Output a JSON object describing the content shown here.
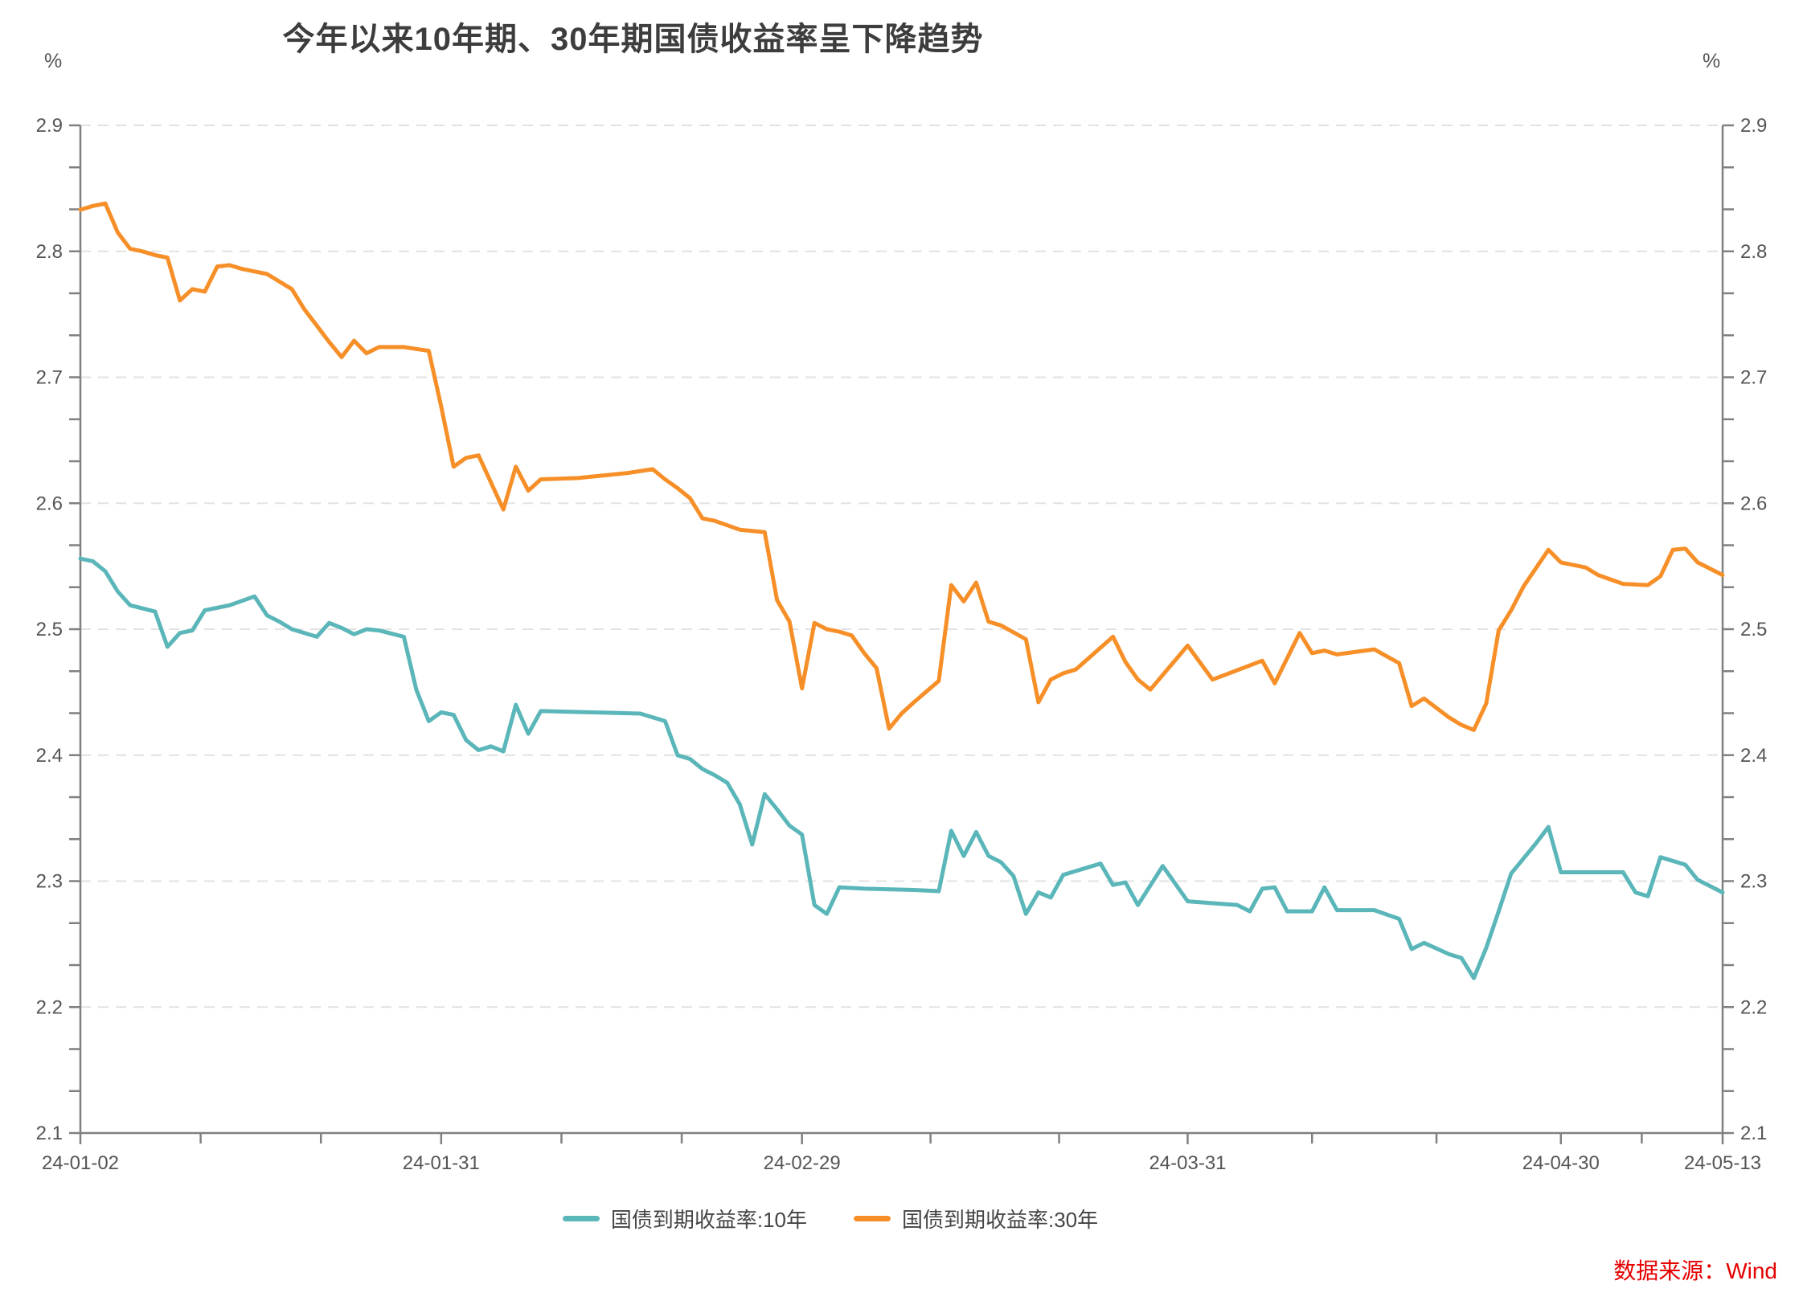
{
  "title": "今年以来10年期、30年期国债收益率呈下降趋势",
  "source_note": "数据来源：Wind",
  "colors": {
    "title_text": "#3d3d3d",
    "axis_line": "#808080",
    "tick_text": "#555555",
    "gridline": "#e2e2e2",
    "source_text": "#e60000",
    "series_10y": "#5ab6b9",
    "series_30y": "#f78f28"
  },
  "chart_data": {
    "type": "line",
    "title": "今年以来10年期、30年期国债收益率呈下降趋势",
    "unit_label": "%",
    "xlabel": "",
    "ylabel": "%",
    "ylim": [
      2.1,
      2.9
    ],
    "y_major_step": 0.1,
    "y_minors_per_major": 2,
    "grid": "horizontal dashed",
    "dual_y_axis": true,
    "legend_position": "bottom-center",
    "x_axis": {
      "range_days": [
        0,
        132
      ],
      "tick_labels": [
        "24-01-02",
        "24-01-31",
        "24-02-29",
        "24-03-31",
        "24-04-30",
        "24-05-13"
      ],
      "tick_days": [
        0,
        29,
        58,
        89,
        119,
        132
      ]
    },
    "series": [
      {
        "name": "国债到期收益率:10年",
        "color": "#5ab6b9",
        "points": [
          [
            0,
            2.556
          ],
          [
            1,
            2.554
          ],
          [
            2,
            2.546
          ],
          [
            3,
            2.53
          ],
          [
            4,
            2.519
          ],
          [
            6,
            2.514
          ],
          [
            7,
            2.486
          ],
          [
            8,
            2.497
          ],
          [
            9,
            2.499
          ],
          [
            10,
            2.515
          ],
          [
            12,
            2.519
          ],
          [
            14,
            2.526
          ],
          [
            15,
            2.511
          ],
          [
            16,
            2.506
          ],
          [
            17,
            2.5
          ],
          [
            19,
            2.494
          ],
          [
            20,
            2.505
          ],
          [
            21,
            2.501
          ],
          [
            22,
            2.496
          ],
          [
            23,
            2.5
          ],
          [
            24,
            2.499
          ],
          [
            26,
            2.494
          ],
          [
            27,
            2.452
          ],
          [
            28,
            2.427
          ],
          [
            29,
            2.434
          ],
          [
            30,
            2.432
          ],
          [
            31,
            2.412
          ],
          [
            32,
            2.404
          ],
          [
            33,
            2.407
          ],
          [
            34,
            2.403
          ],
          [
            35,
            2.44
          ],
          [
            36,
            2.417
          ],
          [
            37,
            2.435
          ],
          [
            45,
            2.433
          ],
          [
            47,
            2.427
          ],
          [
            48,
            2.4
          ],
          [
            49,
            2.397
          ],
          [
            50,
            2.389
          ],
          [
            51,
            2.384
          ],
          [
            52,
            2.378
          ],
          [
            53,
            2.361
          ],
          [
            54,
            2.329
          ],
          [
            55,
            2.369
          ],
          [
            56,
            2.357
          ],
          [
            57,
            2.344
          ],
          [
            58,
            2.337
          ],
          [
            59,
            2.281
          ],
          [
            60,
            2.274
          ],
          [
            61,
            2.295
          ],
          [
            63,
            2.294
          ],
          [
            67,
            2.293
          ],
          [
            69,
            2.292
          ],
          [
            70,
            2.34
          ],
          [
            71,
            2.32
          ],
          [
            72,
            2.339
          ],
          [
            73,
            2.32
          ],
          [
            74,
            2.315
          ],
          [
            75,
            2.304
          ],
          [
            76,
            2.274
          ],
          [
            77,
            2.291
          ],
          [
            78,
            2.287
          ],
          [
            79,
            2.305
          ],
          [
            80,
            2.308
          ],
          [
            81,
            2.311
          ],
          [
            82,
            2.314
          ],
          [
            83,
            2.297
          ],
          [
            84,
            2.299
          ],
          [
            85,
            2.281
          ],
          [
            87,
            2.312
          ],
          [
            89,
            2.284
          ],
          [
            93,
            2.281
          ],
          [
            94,
            2.276
          ],
          [
            95,
            2.294
          ],
          [
            96,
            2.295
          ],
          [
            97,
            2.276
          ],
          [
            99,
            2.276
          ],
          [
            100,
            2.295
          ],
          [
            101,
            2.277
          ],
          [
            104,
            2.277
          ],
          [
            106,
            2.27
          ],
          [
            107,
            2.246
          ],
          [
            108,
            2.251
          ],
          [
            110,
            2.242
          ],
          [
            111,
            2.239
          ],
          [
            112,
            2.223
          ],
          [
            113,
            2.247
          ],
          [
            114,
            2.276
          ],
          [
            115,
            2.306
          ],
          [
            117,
            2.33
          ],
          [
            118,
            2.343
          ],
          [
            119,
            2.307
          ],
          [
            124,
            2.307
          ],
          [
            125,
            2.291
          ],
          [
            126,
            2.288
          ],
          [
            127,
            2.319
          ],
          [
            129,
            2.313
          ],
          [
            130,
            2.301
          ],
          [
            132,
            2.291
          ]
        ]
      },
      {
        "name": "国债到期收益率:30年",
        "color": "#f78f28",
        "points": [
          [
            0,
            2.833
          ],
          [
            1,
            2.836
          ],
          [
            2,
            2.838
          ],
          [
            3,
            2.815
          ],
          [
            4,
            2.802
          ],
          [
            5,
            2.8
          ],
          [
            6,
            2.797
          ],
          [
            7,
            2.795
          ],
          [
            8,
            2.761
          ],
          [
            9,
            2.77
          ],
          [
            10,
            2.768
          ],
          [
            11,
            2.788
          ],
          [
            12,
            2.789
          ],
          [
            13,
            2.786
          ],
          [
            14,
            2.784
          ],
          [
            15,
            2.782
          ],
          [
            16,
            2.776
          ],
          [
            17,
            2.77
          ],
          [
            18,
            2.754
          ],
          [
            19,
            2.741
          ],
          [
            20,
            2.728
          ],
          [
            21,
            2.716
          ],
          [
            22,
            2.729
          ],
          [
            23,
            2.719
          ],
          [
            24,
            2.724
          ],
          [
            26,
            2.724
          ],
          [
            28,
            2.721
          ],
          [
            29,
            2.677
          ],
          [
            30,
            2.629
          ],
          [
            31,
            2.636
          ],
          [
            32,
            2.638
          ],
          [
            34,
            2.595
          ],
          [
            35,
            2.629
          ],
          [
            36,
            2.61
          ],
          [
            37,
            2.619
          ],
          [
            40,
            2.62
          ],
          [
            44,
            2.624
          ],
          [
            46,
            2.627
          ],
          [
            47,
            2.619
          ],
          [
            48,
            2.612
          ],
          [
            49,
            2.604
          ],
          [
            50,
            2.588
          ],
          [
            51,
            2.586
          ],
          [
            53,
            2.579
          ],
          [
            55,
            2.577
          ],
          [
            56,
            2.523
          ],
          [
            57,
            2.506
          ],
          [
            58,
            2.453
          ],
          [
            59,
            2.505
          ],
          [
            60,
            2.5
          ],
          [
            61,
            2.498
          ],
          [
            62,
            2.495
          ],
          [
            63,
            2.481
          ],
          [
            64,
            2.469
          ],
          [
            65,
            2.421
          ],
          [
            66,
            2.433
          ],
          [
            67,
            2.442
          ],
          [
            69,
            2.459
          ],
          [
            70,
            2.535
          ],
          [
            71,
            2.522
          ],
          [
            72,
            2.537
          ],
          [
            73,
            2.506
          ],
          [
            74,
            2.503
          ],
          [
            76,
            2.492
          ],
          [
            77,
            2.442
          ],
          [
            78,
            2.46
          ],
          [
            79,
            2.465
          ],
          [
            80,
            2.468
          ],
          [
            83,
            2.494
          ],
          [
            84,
            2.474
          ],
          [
            85,
            2.46
          ],
          [
            86,
            2.452
          ],
          [
            89,
            2.487
          ],
          [
            91,
            2.46
          ],
          [
            95,
            2.475
          ],
          [
            96,
            2.457
          ],
          [
            98,
            2.497
          ],
          [
            99,
            2.481
          ],
          [
            100,
            2.483
          ],
          [
            101,
            2.48
          ],
          [
            104,
            2.484
          ],
          [
            106,
            2.473
          ],
          [
            107,
            2.439
          ],
          [
            108,
            2.445
          ],
          [
            110,
            2.43
          ],
          [
            111,
            2.424
          ],
          [
            112,
            2.42
          ],
          [
            113,
            2.441
          ],
          [
            114,
            2.499
          ],
          [
            115,
            2.515
          ],
          [
            116,
            2.534
          ],
          [
            118,
            2.563
          ],
          [
            119,
            2.553
          ],
          [
            121,
            2.549
          ],
          [
            122,
            2.543
          ],
          [
            124,
            2.536
          ],
          [
            126,
            2.535
          ],
          [
            127,
            2.542
          ],
          [
            128,
            2.563
          ],
          [
            129,
            2.564
          ],
          [
            130,
            2.553
          ],
          [
            132,
            2.543
          ]
        ]
      }
    ]
  }
}
